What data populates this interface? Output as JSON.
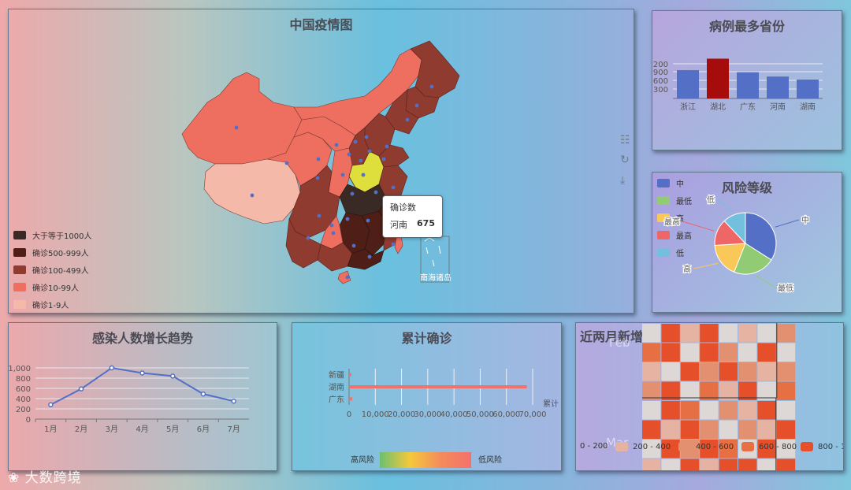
{
  "map": {
    "title": "中国疫情图",
    "legend": [
      {
        "label": "大于等于1000人",
        "color": "#3a2a26"
      },
      {
        "label": "确诊500-999人",
        "color": "#4e1e17"
      },
      {
        "label": "确诊100-499人",
        "color": "#8f3b30"
      },
      {
        "label": "确诊10-99人",
        "color": "#ee6f60"
      },
      {
        "label": "确诊1-9人",
        "color": "#f5b9a9"
      }
    ],
    "tooltip": {
      "title": "确诊数",
      "province": "河南",
      "value": "675"
    },
    "inset_label": "南海诸岛"
  },
  "top_provinces": {
    "title": "病例最多省份",
    "chart_data": {
      "type": "bar",
      "categories": [
        "浙江",
        "湖北",
        "广东",
        "河南",
        "湖南"
      ],
      "values": [
        840,
        1180,
        780,
        650,
        560
      ],
      "tick_labels": [
        "200",
        "900",
        "600",
        "300"
      ],
      "colors": [
        "#5470c6",
        "#a60c0c",
        "#5470c6",
        "#5470c6",
        "#5470c6"
      ]
    }
  },
  "risk": {
    "title": "风险等级",
    "legend": [
      {
        "label": "中",
        "color": "#5470c6"
      },
      {
        "label": "最低",
        "color": "#91cc75"
      },
      {
        "label": "高",
        "color": "#fac858"
      },
      {
        "label": "最高",
        "color": "#ee6666"
      },
      {
        "label": "低",
        "color": "#73c0de"
      }
    ],
    "chart_data": {
      "type": "pie",
      "labels": [
        "中",
        "最低",
        "高",
        "最高",
        "低"
      ],
      "values": [
        34,
        22,
        18,
        14,
        12
      ],
      "colors": [
        "#5470c6",
        "#91cc75",
        "#fac858",
        "#ee6666",
        "#73c0de"
      ]
    }
  },
  "trend": {
    "title": "感染人数增长趋势",
    "chart_data": {
      "type": "line",
      "categories": [
        "1月",
        "2月",
        "3月",
        "4月",
        "5月",
        "6月",
        "7月"
      ],
      "values": [
        280,
        590,
        1000,
        900,
        840,
        490,
        350
      ],
      "yticks": [
        "0",
        "200",
        "400",
        "600",
        "800",
        "1,000"
      ]
    }
  },
  "cumulative": {
    "title": "累计确诊",
    "axis_label": "累计",
    "chart_data": {
      "type": "bar",
      "categories": [
        "广东",
        "湖南",
        "新疆"
      ],
      "values": [
        1200,
        67800,
        900
      ],
      "xticks": [
        "0",
        "10,000",
        "20,000",
        "30,000",
        "40,000",
        "50,000",
        "60,000",
        "70,000"
      ],
      "xmax": 70000
    },
    "visual_map": {
      "low_label": "高风险",
      "high_label": "低风险"
    }
  },
  "heatmap": {
    "title": "近两月新增",
    "months": [
      "Feb",
      "Mar"
    ],
    "legend": [
      {
        "label": "0 - 200",
        "color": "#ddd8d6"
      },
      {
        "label": "200 - 400",
        "color": "#e6b3a2"
      },
      {
        "label": "400 - 600",
        "color": "#e39070"
      },
      {
        "label": "600 - 800",
        "color": "#e67044"
      },
      {
        "label": "800 - 1",
        "color": "#e5502a"
      }
    ]
  },
  "watermark": "大数跨境"
}
